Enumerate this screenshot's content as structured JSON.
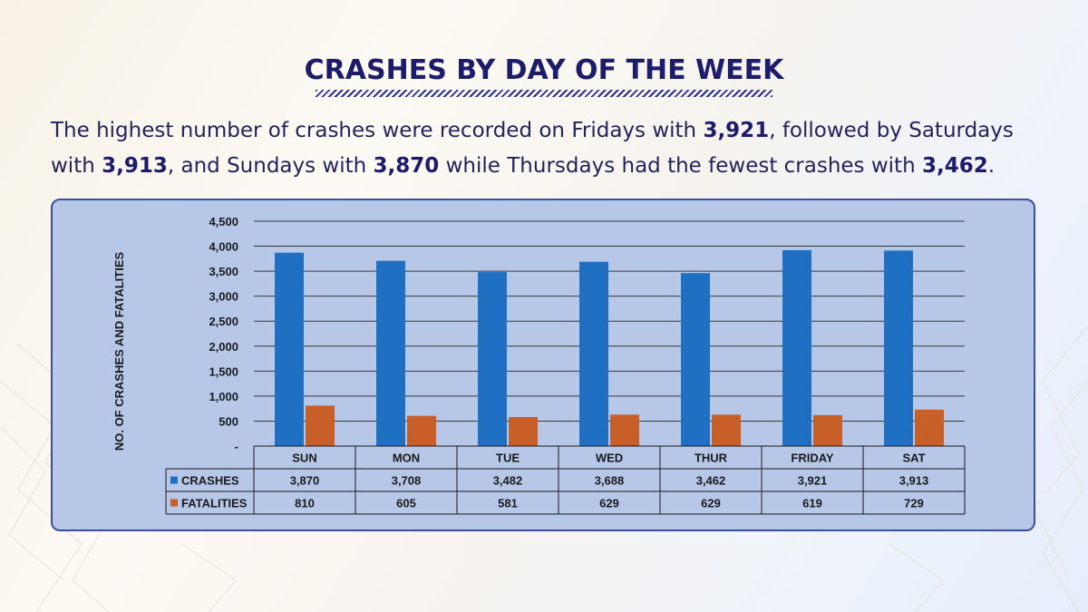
{
  "title": "CRASHES BY DAY OF THE WEEK",
  "intro": {
    "t1": "The highest number of crashes were recorded on Fridays with ",
    "v1": "3,921",
    "t2": ", followed by Saturdays with ",
    "v2": "3,913",
    "t3": ", and Sundays with ",
    "v3": "3,870",
    "t4": " while Thursdays had the fewest crashes with ",
    "v4": "3,462",
    "t5": "."
  },
  "chart_data": {
    "type": "bar",
    "categories": [
      "SUN",
      "MON",
      "TUE",
      "WED",
      "THUR",
      "FRIDAY",
      "SAT"
    ],
    "series": [
      {
        "name": "CRASHES",
        "color": "#1f6fc2",
        "values": [
          3870,
          3708,
          3482,
          3688,
          3462,
          3921,
          3913
        ],
        "labels": [
          "3,870",
          "3,708",
          "3,482",
          "3,688",
          "3,462",
          "3,921",
          "3,913"
        ]
      },
      {
        "name": "FATALITIES",
        "color": "#c95f28",
        "values": [
          810,
          605,
          581,
          629,
          629,
          619,
          729
        ],
        "labels": [
          "810",
          "605",
          "581",
          "629",
          "629",
          "619",
          "729"
        ]
      }
    ],
    "ylabel": "NO. OF CRASHES AND FATALITIES",
    "ylim": [
      0,
      4500
    ],
    "yticks": [
      0,
      500,
      1000,
      1500,
      2000,
      2500,
      3000,
      3500,
      4000,
      4500
    ],
    "ytick_labels": [
      "-",
      "500",
      "1,000",
      "1,500",
      "2,000",
      "2,500",
      "3,000",
      "3,500",
      "4,000",
      "4,500"
    ],
    "grid": true,
    "legend": "data table below chart"
  }
}
